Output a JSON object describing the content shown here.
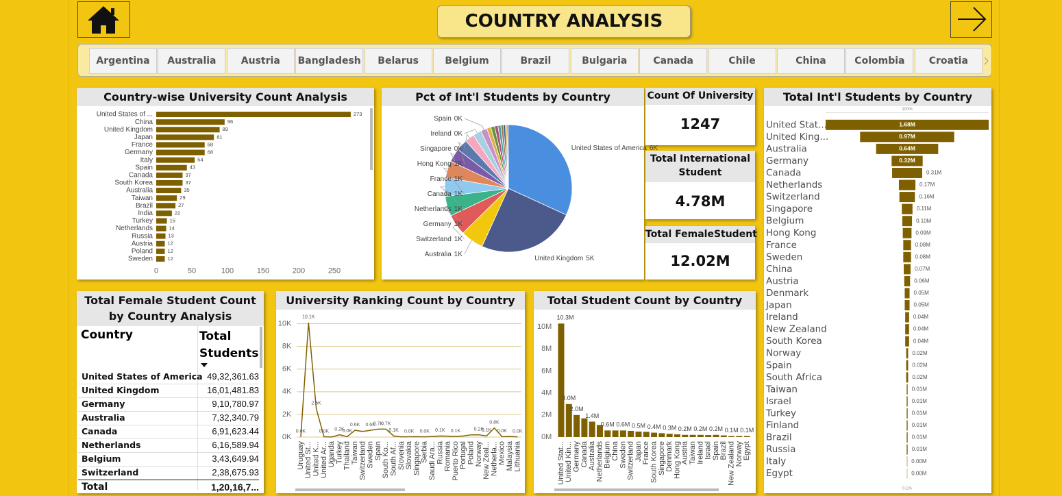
{
  "header": {
    "title": "COUNTRY ANALYSIS"
  },
  "slicer": {
    "items": [
      "Argentina",
      "Australia",
      "Austria",
      "Bangladesh",
      "Belarus",
      "Belgium",
      "Brazil",
      "Bulgaria",
      "Canada",
      "Chile",
      "China",
      "Colombia",
      "Croatia"
    ]
  },
  "cards": [
    {
      "title": "Count Of University",
      "value": "1247"
    },
    {
      "title": "Total International Student",
      "value": "4.78M"
    },
    {
      "title": "Total FemaleStudent",
      "value": "12.02M"
    }
  ],
  "table": {
    "title": "Total Female Student Count by Country Analysis",
    "columns": [
      "Country",
      "Total Students"
    ],
    "rows": [
      [
        "United States of America",
        "49,32,361.63"
      ],
      [
        "United Kingdom",
        "16,01,481.83"
      ],
      [
        "Germany",
        "9,10,780.97"
      ],
      [
        "Australia",
        "7,32,340.79"
      ],
      [
        "Canada",
        "6,91,623.44"
      ],
      [
        "Netherlands",
        "6,16,589.94"
      ],
      [
        "Belgium",
        "3,43,649.94"
      ],
      [
        "Switzerland",
        "2,38,675.93"
      ]
    ],
    "total": [
      "Total",
      "1,20,16,7..."
    ]
  },
  "chart_data": [
    {
      "type": "bar",
      "orientation": "horizontal",
      "title": "Country-wise University Count Analysis",
      "categories": [
        "United States of ...",
        "China",
        "United Kingdom",
        "Japan",
        "France",
        "Germany",
        "Italy",
        "Spain",
        "Canada",
        "South Korea",
        "Australia",
        "Taiwan",
        "Brazil",
        "India",
        "Turkey",
        "Netherlands",
        "Russia",
        "Austria",
        "Poland",
        "Sweden"
      ],
      "values": [
        273,
        96,
        89,
        81,
        68,
        68,
        54,
        43,
        37,
        37,
        35,
        29,
        27,
        22,
        15,
        14,
        13,
        12,
        12,
        12
      ],
      "color": "#7F6000",
      "xlim": [
        0,
        300
      ],
      "xticks": [
        0,
        50,
        100,
        150,
        200,
        250
      ]
    },
    {
      "type": "pie",
      "title": "Pct of Int'l Students by Country",
      "categories": [
        "United States of America",
        "United Kingdom",
        "Australia",
        "Switzerland",
        "Germany",
        "Netherlands",
        "Canada",
        "France",
        "Hong Kong",
        "Singapore",
        "Ireland",
        "Spain",
        null,
        null,
        null,
        null,
        null,
        null,
        null,
        null
      ],
      "values": [
        6000,
        4700,
        1100,
        1000,
        950,
        900,
        800,
        650,
        550,
        450,
        400,
        300,
        200,
        180,
        160,
        140,
        120,
        100,
        80,
        60
      ],
      "value_labels": [
        "6K",
        "5K",
        "1K",
        "1K",
        "1K",
        "1K",
        "1K",
        "1K",
        "1K",
        "0K",
        "0K",
        "0K",
        null,
        null,
        null,
        null,
        null,
        null,
        null,
        null
      ],
      "colors": [
        "#4A8FDF",
        "#4B5A8B",
        "#F2C80F",
        "#E05A5A",
        "#3BB38A",
        "#8FC9F0",
        "#E0865A",
        "#7A5BA8",
        "#5A7AAE",
        "#F5A8C0",
        "#A8D0E0",
        "#C88FC8",
        "#D9B24C",
        "#6C8F3F",
        "#B05070",
        "#4FA0A8",
        "#A07850",
        "#3D5A80",
        "#E8C070",
        "#444444"
      ]
    },
    {
      "type": "funnel",
      "title": "Total Int'l Students by Country",
      "categories": [
        "United Stat...",
        "United King...",
        "Australia",
        "Germany",
        "Canada",
        "Netherlands",
        "Switzerland",
        "Singapore",
        "Belgium",
        "Hong Kong",
        "France",
        "Sweden",
        "China",
        "Austria",
        "Denmark",
        "Japan",
        "Ireland",
        "New Zealand",
        "South Korea",
        "Norway",
        "Spain",
        "South Africa",
        "Taiwan",
        "Israel",
        "Turkey",
        "Finland",
        "Brazil",
        "Russia",
        "Italy",
        "Egypt"
      ],
      "values": [
        1680000,
        970000,
        640000,
        320000,
        310000,
        170000,
        160000,
        110000,
        100000,
        90000,
        80000,
        80000,
        70000,
        60000,
        50000,
        50000,
        40000,
        40000,
        40000,
        20000,
        20000,
        20000,
        10000,
        10000,
        10000,
        10000,
        10000,
        10000,
        4000,
        3000
      ],
      "value_labels": [
        "1.68M",
        "0.97M",
        "0.64M",
        "0.32M",
        "0.31M",
        "0.17M",
        "0.16M",
        "0.11M",
        "0.10M",
        "0.09M",
        "0.08M",
        "0.08M",
        "0.07M",
        "0.06M",
        "0.05M",
        "0.05M",
        "0.04M",
        "0.04M",
        "0.04M",
        "0.02M",
        "0.02M",
        "0.02M",
        "0.01M",
        "0.01M",
        "0.01M",
        "0.01M",
        "0.01M",
        "0.01M",
        "0.00M",
        "0.00M"
      ],
      "top_percent_label": "100%",
      "bottom_percent_label": "0.1%",
      "color": "#7F6000"
    },
    {
      "type": "line",
      "title": "University Ranking Count by Country",
      "categories": [
        "Uruguay",
        "United St...",
        "United K...",
        "United Ar...",
        "Uganda",
        "Turkey",
        "Thailand",
        "Taiwan",
        "Switzerland",
        "Sweden",
        "Spain",
        "South Ko...",
        "South Af...",
        "Slovenia",
        "Slovakia",
        "Singapore",
        "Serbia",
        "Saudi Ara...",
        "Russia",
        "Romania",
        "Puerto Rico",
        "Portugal",
        "Poland",
        "Norway",
        "New Zeal...",
        "Netherla...",
        "Mexico",
        "Malaysia",
        "Lithuania"
      ],
      "values": [
        20,
        10100,
        2500,
        30,
        10,
        200,
        40,
        600,
        500,
        600,
        700,
        700,
        100,
        20,
        30,
        40,
        20,
        50,
        100,
        80,
        60,
        100,
        200,
        200,
        100,
        800,
        40,
        50,
        20
      ],
      "value_labels": [
        "0.0K",
        "10.1K",
        "2.5K",
        "0.0K",
        null,
        "0.2K",
        "0.0K",
        "0.6K",
        null,
        "0.6K",
        "0.7K",
        "0.7K",
        "0.1K",
        null,
        "0.0K",
        null,
        "0.0K",
        null,
        "0.1K",
        null,
        "0.1K",
        null,
        null,
        "0.2K",
        "0.1K",
        "0.8K",
        "0.0K",
        null,
        "0.0K"
      ],
      "color": "#7F6000",
      "ylim": [
        0,
        11000
      ],
      "yticks": [
        {
          "value": 0,
          "label": "0K"
        },
        {
          "value": 2000,
          "label": "2K"
        },
        {
          "value": 4000,
          "label": "4K"
        },
        {
          "value": 6000,
          "label": "6K"
        },
        {
          "value": 8000,
          "label": "8K"
        },
        {
          "value": 10000,
          "label": "10K"
        }
      ],
      "grid": true
    },
    {
      "type": "bar",
      "orientation": "vertical",
      "title": "Total Student Count by Country",
      "categories": [
        "United Stat...",
        "United Kin...",
        "Germany",
        "Canada",
        "Australia",
        "Netherlands",
        "Belgium",
        "China",
        "Sweden",
        "Switzerland",
        "Japan",
        "France",
        "South Korea",
        "Singapore",
        "Denmark",
        "Hong Kong",
        "Austria",
        "Taiwan",
        "Ireland",
        "Israel",
        "Spain",
        "Brazil",
        "New Zealand",
        "Norway",
        "Egypt"
      ],
      "values": [
        10300000,
        3000000,
        2000000,
        1700000,
        1400000,
        1100000,
        600000,
        600000,
        600000,
        560000,
        500000,
        480000,
        400000,
        350000,
        300000,
        250000,
        200000,
        200000,
        200000,
        180000,
        200000,
        150000,
        100000,
        100000,
        100000
      ],
      "value_labels": [
        "10.3M",
        "3.0M",
        "2.0M",
        null,
        "1.4M",
        null,
        "0.6M",
        null,
        "0.6M",
        null,
        "0.5M",
        null,
        "0.4M",
        null,
        "0.3M",
        null,
        "0.2M",
        null,
        "0.2M",
        null,
        "0.2M",
        null,
        "0.1M",
        null,
        "0.1M"
      ],
      "color": "#7F6000",
      "ylim": [
        0,
        11000000
      ],
      "yticks": [
        {
          "value": 0,
          "label": "0M"
        },
        {
          "value": 2000000,
          "label": "2M"
        },
        {
          "value": 4000000,
          "label": "4M"
        },
        {
          "value": 6000000,
          "label": "6M"
        },
        {
          "value": 8000000,
          "label": "8M"
        },
        {
          "value": 10000000,
          "label": "10M"
        }
      ]
    }
  ]
}
